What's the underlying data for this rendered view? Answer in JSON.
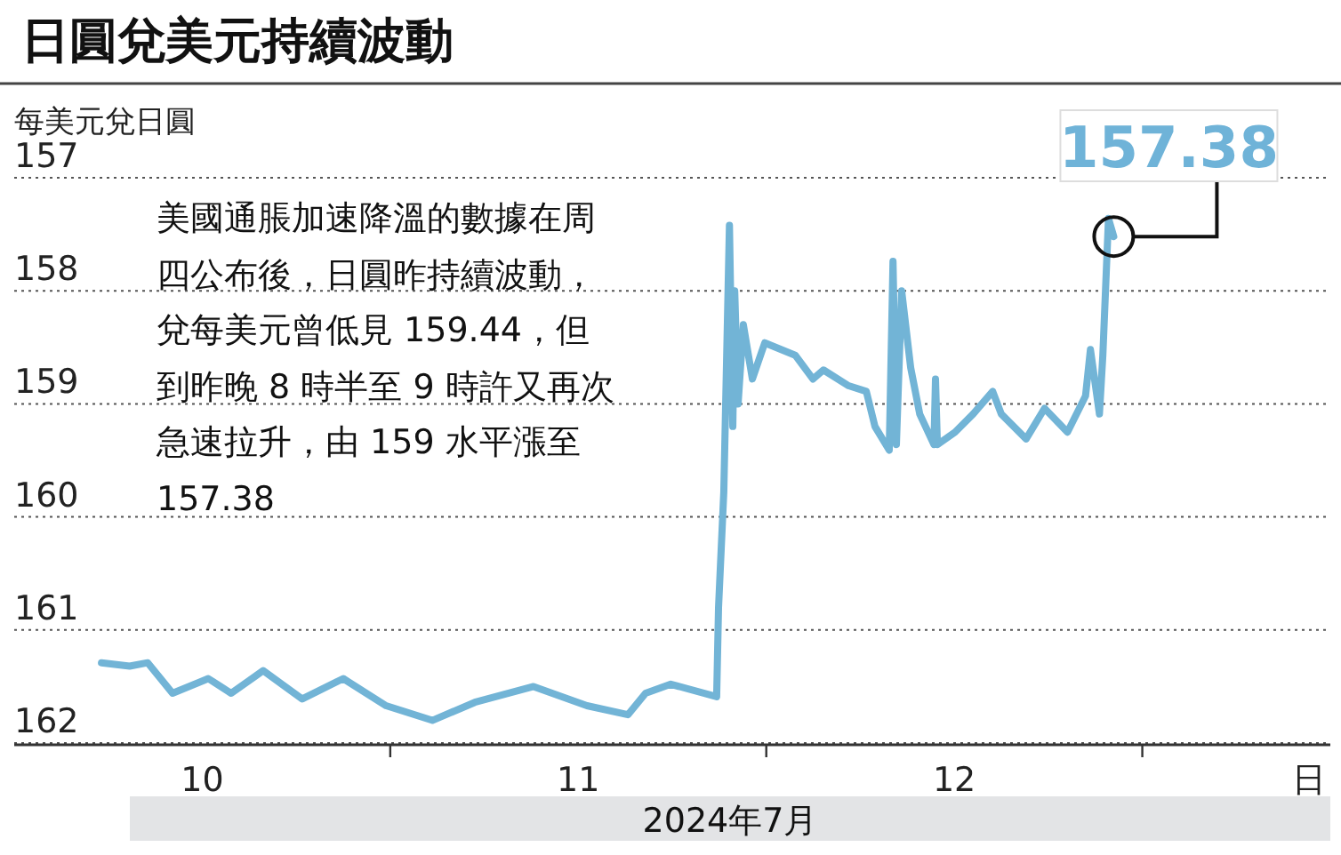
{
  "chart_data": {
    "type": "line",
    "title": "日圓兌美元持續波動",
    "ylabel": "每美元兌日圓",
    "xlabel": "日",
    "x": [
      10.232,
      10.307,
      10.355,
      10.421,
      10.516,
      10.577,
      10.662,
      10.766,
      10.875,
      10.989,
      11.112,
      11.225,
      11.381,
      11.523,
      11.632,
      11.679,
      11.746,
      11.868,
      11.873,
      11.887,
      11.902,
      11.911,
      11.916,
      11.925,
      11.939,
      11.963,
      11.996,
      12.077,
      12.124,
      12.152,
      12.219,
      12.266,
      12.289,
      12.327,
      12.337,
      12.346,
      12.36,
      12.384,
      12.408,
      12.446,
      12.45,
      12.455,
      12.502,
      12.55,
      12.602,
      12.625,
      12.691,
      12.74,
      12.801,
      12.849,
      12.862,
      12.886,
      12.895,
      12.91,
      12.924
    ],
    "series": [
      {
        "color": "#72b4d6",
        "values": [
          161.29,
          161.32,
          161.29,
          161.56,
          161.43,
          161.56,
          161.36,
          161.61,
          161.43,
          161.67,
          161.8,
          161.64,
          161.5,
          161.67,
          161.75,
          161.56,
          161.48,
          161.59,
          160.8,
          159.78,
          157.42,
          159.2,
          158.0,
          159.0,
          158.3,
          158.78,
          158.46,
          158.57,
          158.78,
          158.7,
          158.84,
          158.89,
          159.2,
          159.41,
          157.74,
          159.36,
          158.0,
          158.68,
          159.09,
          159.36,
          158.78,
          159.36,
          159.25,
          159.09,
          158.89,
          159.09,
          159.31,
          159.04,
          159.25,
          158.93,
          158.52,
          159.09,
          158.57,
          157.36,
          157.52
        ]
      }
    ],
    "xlim": [
      10,
      13.5
    ],
    "xticks": [
      {
        "value": 10.5,
        "label": "10"
      },
      {
        "value": 11,
        "label": null
      },
      {
        "value": 11.5,
        "label": "11"
      },
      {
        "value": 12,
        "label": null
      },
      {
        "value": 12.5,
        "label": "12"
      },
      {
        "value": 13,
        "label": null
      }
    ],
    "ylim": [
      162,
      157
    ],
    "yticks": [
      157,
      158,
      159,
      160,
      161,
      162
    ],
    "grid": "y",
    "annotations": [
      "美國通脹加速降溫的數據在周四公布後，日圓昨持續波動，兌每美元曾低見 159.44，但到昨晚 8 時半至 9 時許又再次急速拉升，由 159 水平漲至 157.38",
      {
        "text": "157.38",
        "x": 12.924,
        "y": 157.52
      },
      "2024年7月"
    ]
  }
}
